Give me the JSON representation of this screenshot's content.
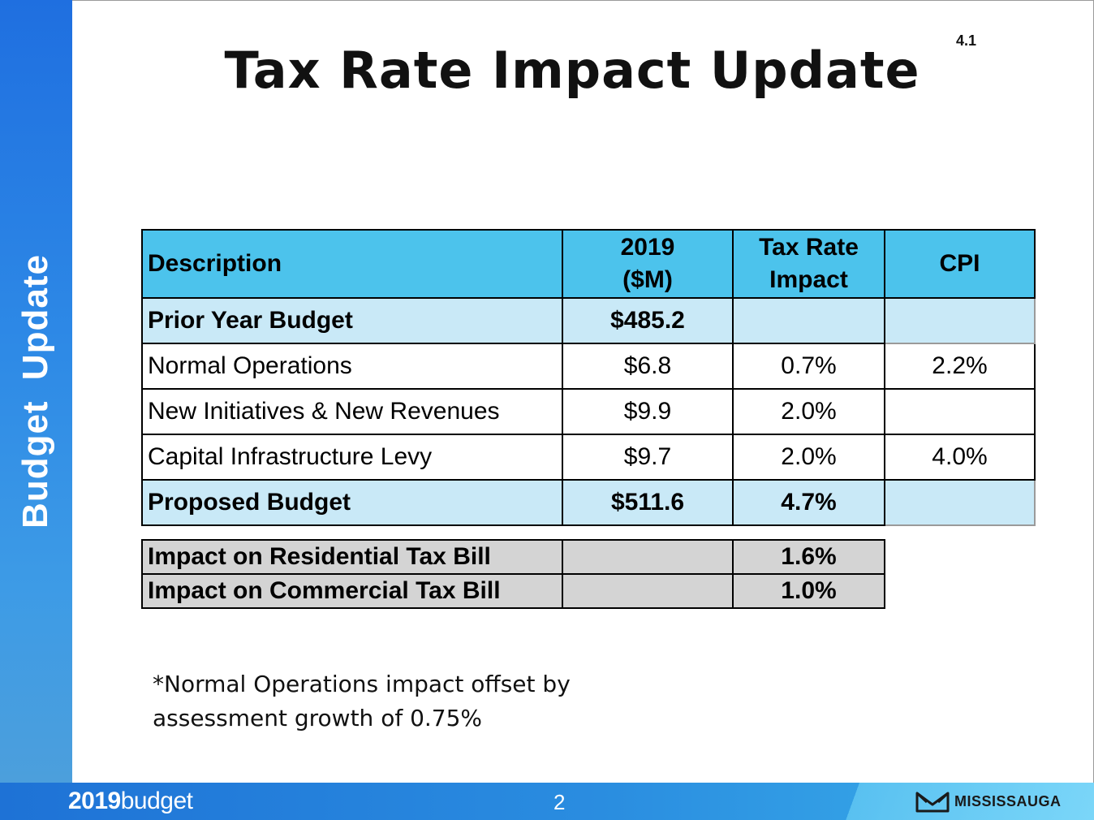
{
  "sidebar": {
    "label": "Budget Update"
  },
  "slide": {
    "title": "Tax Rate Impact Update",
    "number": "4.1"
  },
  "table": {
    "headers": {
      "description": "Description",
      "value_line1": "2019",
      "value_line2": "($M)",
      "tax_line1": "Tax Rate",
      "tax_line2": "Impact",
      "cpi": "CPI"
    },
    "rows": [
      {
        "description": "Prior Year Budget",
        "value": "$485.2",
        "tax": "",
        "cpi": ""
      },
      {
        "description": "Normal Operations",
        "value": "$6.8",
        "tax": "0.7%",
        "cpi": "2.2%"
      },
      {
        "description": "New Initiatives & New Revenues",
        "value": "$9.9",
        "tax": "2.0%",
        "cpi": ""
      },
      {
        "description": "Capital Infrastructure Levy",
        "value": "$9.7",
        "tax": "2.0%",
        "cpi": "4.0%"
      },
      {
        "description": "Proposed Budget",
        "value": "$511.6",
        "tax": "4.7%",
        "cpi": ""
      }
    ]
  },
  "impact": [
    {
      "description": "Impact on Residential Tax Bill",
      "value": "",
      "tax": "1.6%"
    },
    {
      "description": "Impact on Commercial Tax Bill",
      "value": "",
      "tax": "1.0%"
    }
  ],
  "footnote": {
    "line1": "*Normal Operations impact offset by",
    "line2": "assessment growth of 0.75%"
  },
  "footer": {
    "brand_year": "2019",
    "brand_word": "budget",
    "page": "2",
    "logo_text": "MISSISSAUGA",
    "logo_icon": "mississauga-m-icon"
  },
  "colors": {
    "sidebar": "#2e8ae6",
    "header": "#4cc3ec",
    "light_row": "#c9e9f7",
    "impact_row": "#d4d4d4"
  }
}
